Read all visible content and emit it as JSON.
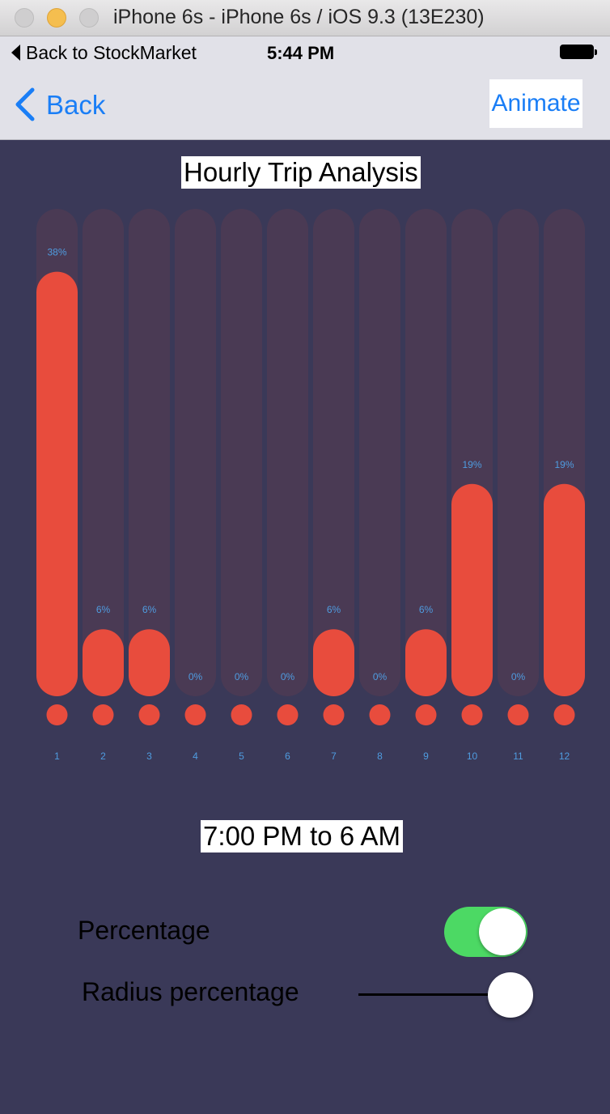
{
  "window": {
    "title": "iPhone 6s - iPhone 6s / iOS 9.3 (13E230)"
  },
  "status_bar": {
    "back_app": "Back to StockMarket",
    "time": "5:44 PM"
  },
  "nav": {
    "back_label": "Back",
    "animate_label": "Animate"
  },
  "chart_title": "Hourly Trip Analysis",
  "time_range": "7:00 PM to 6 AM",
  "colors": {
    "bar": "#e84c3d",
    "track": "#4a3a54",
    "label": "#4f9ce0",
    "background": "#3a3958",
    "toggle_on": "#4cd964"
  },
  "chart_data": {
    "type": "bar",
    "title": "Hourly Trip Analysis",
    "categories": [
      "1",
      "2",
      "3",
      "4",
      "5",
      "6",
      "7",
      "8",
      "9",
      "10",
      "11",
      "12"
    ],
    "values": [
      38,
      6,
      6,
      0,
      0,
      0,
      6,
      0,
      6,
      19,
      0,
      19
    ],
    "labels": [
      "38%",
      "6%",
      "6%",
      "0%",
      "0%",
      "0%",
      "6%",
      "0%",
      "6%",
      "19%",
      "0%",
      "19%"
    ],
    "ylim": [
      0,
      40
    ]
  },
  "settings": {
    "percentage": {
      "label": "Percentage",
      "enabled": true
    },
    "radius": {
      "label": "Radius percentage",
      "value": 1.0
    }
  }
}
